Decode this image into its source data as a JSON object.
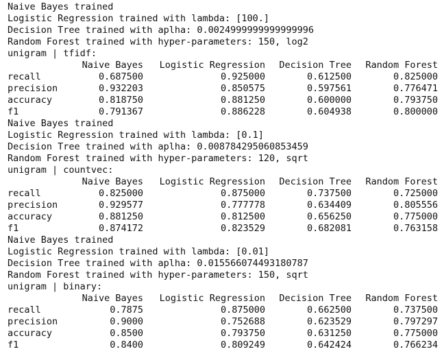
{
  "blocks": [
    {
      "nb": "Naive Bayes trained",
      "lr": "Logistic Regression trained with lambda: [100.]",
      "dt": "Decision Tree trained with aplha: 0.0024999999999999996",
      "rf": "Random Forest trained with hyper-parameters: 150, log2",
      "title": "unigram | tfidf:",
      "header": [
        "",
        "Naive Bayes",
        "Logistic Regression",
        "Decision Tree",
        "Random Forest"
      ],
      "rows": [
        [
          "recall",
          "0.687500",
          "0.925000",
          "0.612500",
          "0.825000"
        ],
        [
          "precision",
          "0.932203",
          "0.850575",
          "0.597561",
          "0.776471"
        ],
        [
          "accuracy",
          "0.818750",
          "0.881250",
          "0.600000",
          "0.793750"
        ],
        [
          "f1",
          "0.791367",
          "0.886228",
          "0.604938",
          "0.800000"
        ]
      ]
    },
    {
      "nb": "Naive Bayes trained",
      "lr": "Logistic Regression trained with lambda: [0.1]",
      "dt": "Decision Tree trained with aplha: 0.008784295060853459",
      "rf": "Random Forest trained with hyper-parameters: 120, sqrt",
      "title": "unigram | countvec:",
      "header": [
        "",
        "Naive Bayes",
        "Logistic Regression",
        "Decision Tree",
        "Random Forest"
      ],
      "rows": [
        [
          "recall",
          "0.825000",
          "0.875000",
          "0.737500",
          "0.725000"
        ],
        [
          "precision",
          "0.929577",
          "0.777778",
          "0.634409",
          "0.805556"
        ],
        [
          "accuracy",
          "0.881250",
          "0.812500",
          "0.656250",
          "0.775000"
        ],
        [
          "f1",
          "0.874172",
          "0.823529",
          "0.682081",
          "0.763158"
        ]
      ]
    },
    {
      "nb": "Naive Bayes trained",
      "lr": "Logistic Regression trained with lambda: [0.01]",
      "dt": "Decision Tree trained with aplha: 0.015566074493180787",
      "rf": "Random Forest trained with hyper-parameters: 150, sqrt",
      "title": "unigram | binary:",
      "header": [
        "",
        "Naive Bayes",
        "Logistic Regression",
        "Decision Tree",
        "Random Forest"
      ],
      "rows": [
        [
          "recall",
          "0.7875",
          "0.875000",
          "0.662500",
          "0.737500"
        ],
        [
          "precision",
          "0.9000",
          "0.752688",
          "0.623529",
          "0.797297"
        ],
        [
          "accuracy",
          "0.8500",
          "0.793750",
          "0.631250",
          "0.775000"
        ],
        [
          "f1",
          "0.8400",
          "0.809249",
          "0.642424",
          "0.766234"
        ]
      ]
    }
  ]
}
